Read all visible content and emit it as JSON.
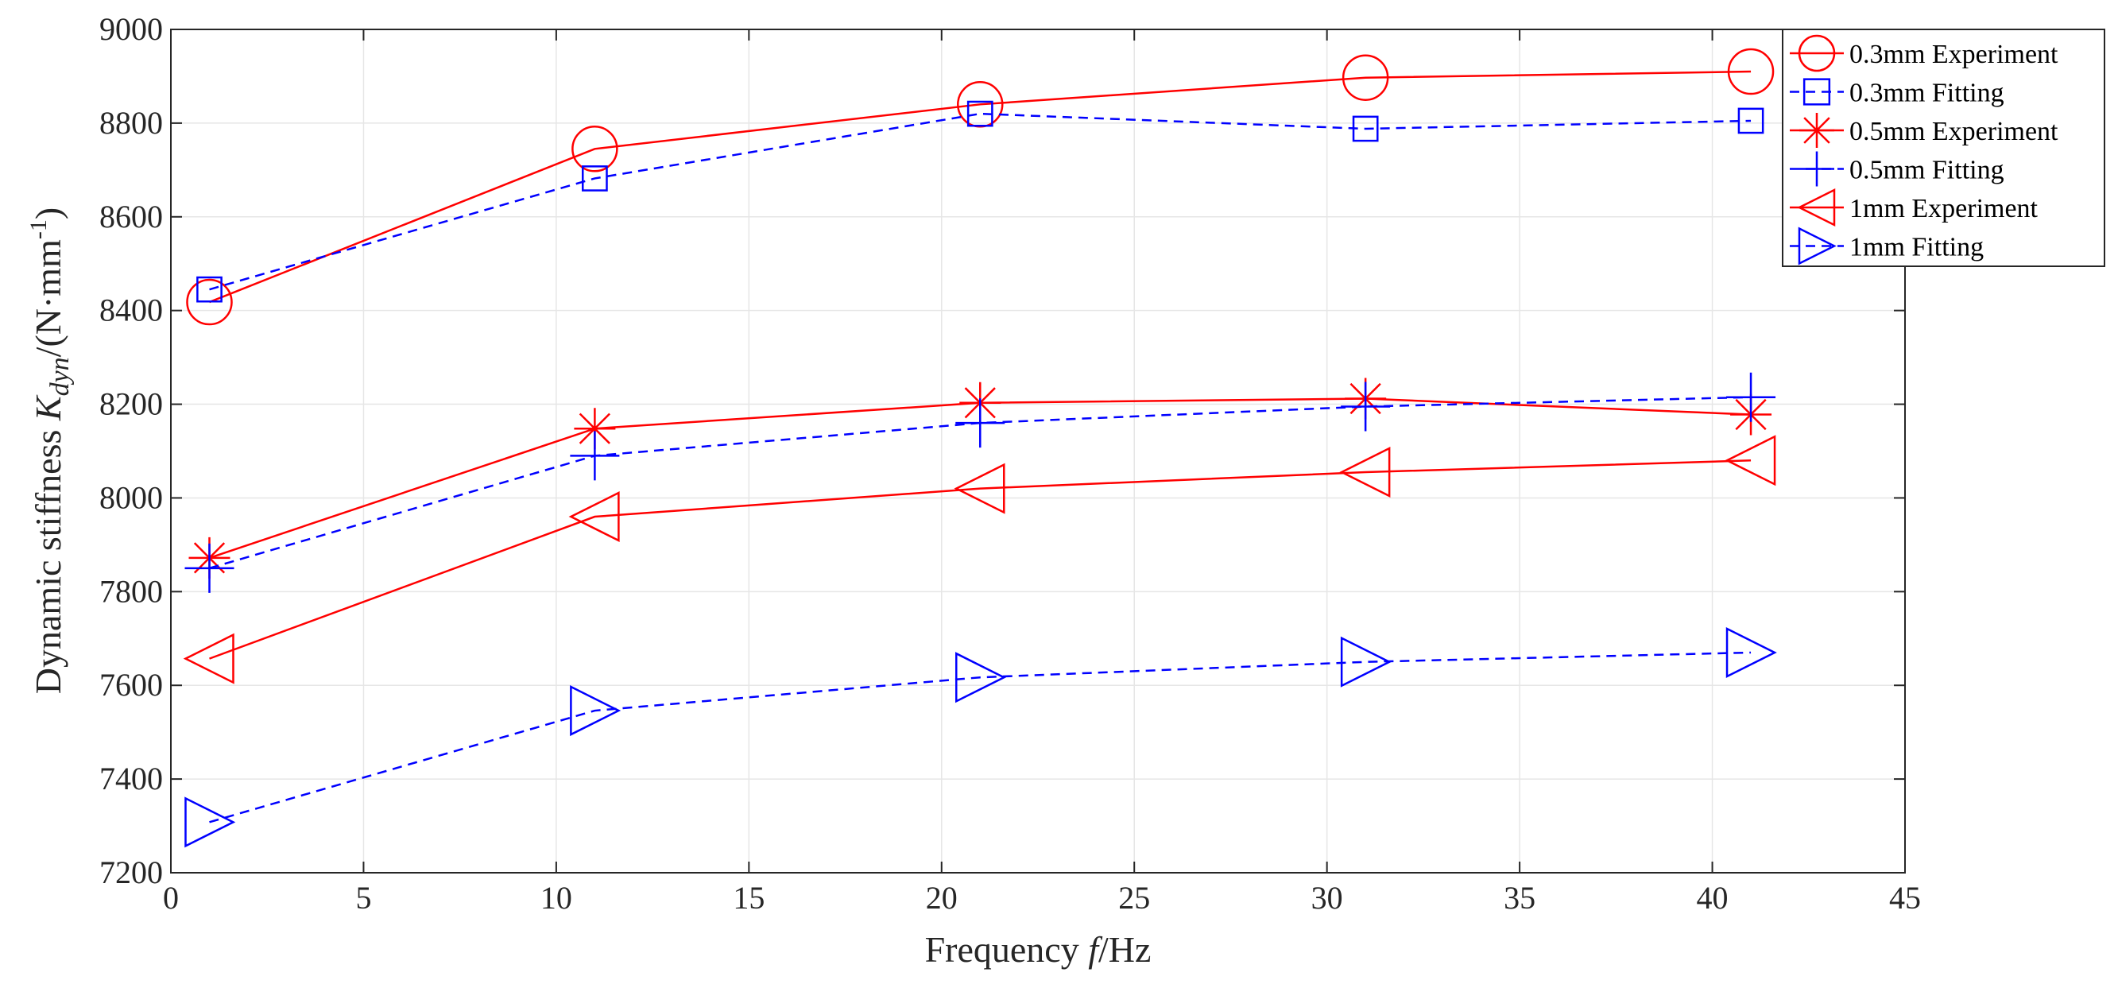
{
  "chart_data": {
    "type": "line",
    "title": "",
    "xlabel": {
      "prefix": "Frequency ",
      "var": "f",
      "suffix": "/Hz"
    },
    "ylabel": {
      "prefix": "Dynamic stiffness ",
      "var": "K",
      "sub": "dyn",
      "mid": "/(N·mm",
      "sup": "-1",
      "end": ")"
    },
    "xlim": [
      0,
      45
    ],
    "ylim": [
      7200,
      9000
    ],
    "xticks": [
      0,
      5,
      10,
      15,
      20,
      25,
      30,
      35,
      40,
      45
    ],
    "yticks": [
      7200,
      7400,
      7600,
      7800,
      8000,
      8200,
      8400,
      8600,
      8800,
      9000
    ],
    "grid": true,
    "legend_position": "top-right",
    "x": [
      1,
      11,
      21,
      31,
      41
    ],
    "series": [
      {
        "name": "0.3mm Experiment",
        "values": [
          8418,
          8745,
          8840,
          8897,
          8910
        ],
        "color": "#ff0000",
        "dash": "solid",
        "marker": "circle"
      },
      {
        "name": "0.3mm Fitting",
        "values": [
          8445,
          8682,
          8820,
          8788,
          8805
        ],
        "color": "#0000ff",
        "dash": "dashed",
        "marker": "square"
      },
      {
        "name": "0.5mm Experiment",
        "values": [
          7872,
          8148,
          8203,
          8212,
          8178
        ],
        "color": "#ff0000",
        "dash": "solid",
        "marker": "asterisk"
      },
      {
        "name": "0.5mm Fitting",
        "values": [
          7850,
          8090,
          8160,
          8195,
          8215
        ],
        "color": "#0000ff",
        "dash": "dashed",
        "marker": "plus"
      },
      {
        "name": "1mm Experiment",
        "values": [
          7657,
          7960,
          8020,
          8055,
          8080
        ],
        "color": "#ff0000",
        "dash": "solid",
        "marker": "triangle-left"
      },
      {
        "name": "1mm Fitting",
        "values": [
          7308,
          7546,
          7617,
          7650,
          7670
        ],
        "color": "#0000ff",
        "dash": "dashed",
        "marker": "triangle-right"
      }
    ]
  }
}
